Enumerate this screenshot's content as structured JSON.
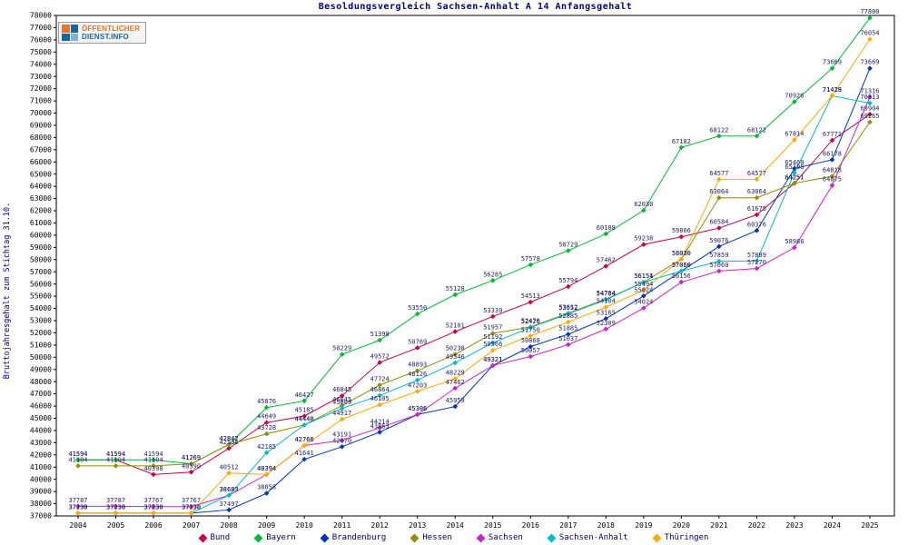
{
  "logo": {
    "line1": "ÖFFENTLICHER",
    "line2": "DIENST.INFO"
  },
  "chart_data": {
    "type": "line",
    "title": "Besoldungsvergleich Sachsen-Anhalt A 14 Anfangsgehalt",
    "ylabel": "Bruttojahresgehalt zum Stichtag 31.10.",
    "xlabel": "",
    "x": [
      "2004",
      "2005",
      "2006",
      "2007",
      "2008",
      "2009",
      "2010",
      "2011",
      "2012",
      "2013",
      "2014",
      "2015",
      "2016",
      "2017",
      "2018",
      "2019",
      "2020",
      "2021",
      "2022",
      "2023",
      "2024",
      "2025"
    ],
    "ylim": [
      37000,
      78000
    ],
    "ytick_step": 1000,
    "grid": false,
    "legend_position": "bottom",
    "marker": "diamond",
    "point_labels": true,
    "label_color": "#222266",
    "axis_color": "#000000",
    "series": [
      {
        "name": "Bund",
        "color": "#cc0044",
        "values": [
          41594,
          41594,
          40398,
          40590,
          42536,
          44649,
          45185,
          46845,
          49572,
          50769,
          52101,
          53339,
          54513,
          55794,
          57462,
          59238,
          59866,
          60584,
          61675,
          64251,
          67771,
          69904
        ]
      },
      {
        "name": "Bayern",
        "color": "#00bb33",
        "values": [
          41594,
          41594,
          41594,
          41269,
          42842,
          45876,
          46427,
          50229,
          51398,
          53550,
          55128,
          56285,
          57578,
          58729,
          60108,
          62030,
          67182,
          68122,
          68122,
          70926,
          73669,
          77800
        ]
      },
      {
        "name": "Brandenburg",
        "color": "#0033bb",
        "values": [
          37230,
          37230,
          37230,
          37230,
          37497,
          38858,
          41641,
          42670,
          43863,
          45306,
          45959,
          49321,
          50868,
          51885,
          53165,
          55024,
          57059,
          59076,
          60376,
          65460,
          66178,
          73669
        ]
      },
      {
        "name": "Hessen",
        "color": "#8f8f00",
        "values": [
          41104,
          41104,
          41104,
          41269,
          42842,
          43728,
          44448,
          46045,
          47724,
          48893,
          50238,
          51957,
          52476,
          53612,
          54764,
          56154,
          58030,
          63064,
          63064,
          64251,
          64818,
          69265
        ]
      },
      {
        "name": "Sachsen",
        "color": "#cc22cc",
        "values": [
          37787,
          37787,
          37767,
          37767,
          38683,
          40394,
          42766,
          43191,
          44214,
          45306,
          47462,
          49321,
          50057,
          51037,
          52309,
          54024,
          56156,
          57060,
          57270,
          58986,
          64075,
          71316
        ]
      },
      {
        "name": "Sachsen-Anhalt",
        "color": "#00bbcc",
        "values": [
          37230,
          37230,
          37230,
          37230,
          38683,
          42185,
          44448,
          45809,
          46864,
          48126,
          49546,
          51192,
          52426,
          53552,
          54704,
          56151,
          57060,
          57859,
          57889,
          65108,
          71428,
          70813
        ]
      },
      {
        "name": "Thüringen",
        "color": "#ffaa00",
        "values": [
          37230,
          37230,
          37230,
          37230,
          40512,
          40394,
          42766,
          44917,
          46105,
          47203,
          48229,
          50566,
          51750,
          52885,
          54104,
          55494,
          58030,
          64577,
          64577,
          67814,
          71419,
          76054
        ]
      }
    ]
  }
}
